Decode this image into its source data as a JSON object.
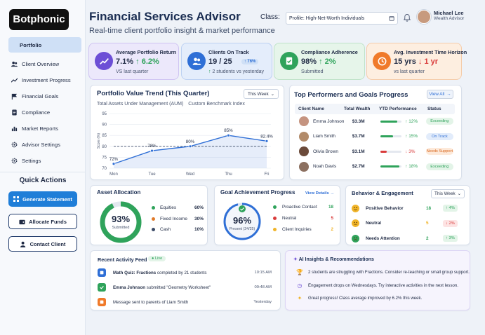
{
  "brand": "Botphonic",
  "sidebar": {
    "items": [
      {
        "label": "Portfolio",
        "icon": "portfolio-icon"
      },
      {
        "label": "Client Overview",
        "icon": "users-icon"
      },
      {
        "label": "Investment Progress",
        "icon": "trend-icon"
      },
      {
        "label": "Financial Goals",
        "icon": "flag-icon"
      },
      {
        "label": "Compliance",
        "icon": "document-icon"
      },
      {
        "label": "Market Reports",
        "icon": "chart-icon"
      },
      {
        "label": "Advisor Settings",
        "icon": "gear-icon"
      },
      {
        "label": "Settings",
        "icon": "gear-icon"
      }
    ],
    "quick_actions_title": "Quick Actions",
    "quick_actions": [
      "Generate Statement",
      "Allocate Funds",
      "Contact Client"
    ]
  },
  "header": {
    "title": "Financial Services Advisor",
    "subtitle": "Real-time client portfolio insight & market performance",
    "class_label": "Class:",
    "class_value": "Profile: High-Net-Worth Individuals",
    "user_name": "Michael Lee",
    "user_role": "Wealth Advisor"
  },
  "kpis": [
    {
      "label": "Average Portfolio Return",
      "value": "7.1%",
      "change": "6.2%",
      "sub": "VS last quarter",
      "icon": "trend-icon",
      "color": "#7a5ae0"
    },
    {
      "label": "Clients On Track",
      "value": "19 / 25",
      "badge": "76%",
      "sub": "2 students vs yesterday",
      "icon": "users-icon",
      "color": "#2f6fd6"
    },
    {
      "label": "Compliance Adherence",
      "value": "98%",
      "change": "2%",
      "sub": "Submitted",
      "icon": "document-check-icon",
      "color": "#2fa35b"
    },
    {
      "label": "Avg. Investment Time Horizon",
      "value": "15 yrs",
      "change": "1 yr",
      "sub": "vs last quarter",
      "icon": "clock-icon",
      "color": "#f07a2a"
    }
  ],
  "trend": {
    "title": "Portfolio Value Trend (This Quarter)",
    "period": "This Week",
    "legend": [
      "Total Assets Under Management (AUM)",
      "Custom Benchmark Index"
    ],
    "ylabel": "Score (%)"
  },
  "chart_data": {
    "type": "line",
    "categories": [
      "Mon",
      "Tue",
      "Wed",
      "Thu",
      "Fri"
    ],
    "series": [
      {
        "name": "Total Assets Under Management (AUM)",
        "values": [
          72,
          78,
          80,
          85,
          82.4
        ]
      },
      {
        "name": "Custom Benchmark Index",
        "values": [
          80,
          80,
          80,
          80,
          80
        ]
      }
    ],
    "data_labels": [
      "72%",
      "78%",
      "80%",
      "85%",
      "82.4%"
    ],
    "yticks": [
      70,
      75,
      80,
      85,
      90,
      95
    ],
    "ylim": [
      70,
      95
    ],
    "ylabel": "Score (%)",
    "grid": true,
    "legend": "top-left"
  },
  "performers": {
    "title": "Top Performers and Goals Progress",
    "view_all": "View All",
    "columns": [
      "Client Name",
      "Total Wealth",
      "YTD Performance",
      "Status"
    ],
    "rows": [
      {
        "name": "Emma Johnson",
        "wealth": "$3.3M",
        "progress": 0.8,
        "ytd": "12%",
        "dir": "up",
        "status": "Exceeding"
      },
      {
        "name": "Liam Smith",
        "wealth": "$3.7M",
        "progress": 0.6,
        "ytd": "15%",
        "dir": "up",
        "status": "On Track"
      },
      {
        "name": "Olivia Brown",
        "wealth": "$3.1M",
        "progress": 0.3,
        "ytd": "3%",
        "dir": "down",
        "status": "Needs Support"
      },
      {
        "name": "Noah Davis",
        "wealth": "$2.7M",
        "progress": 0.9,
        "ytd": "18%",
        "dir": "up",
        "status": "Exceeding"
      }
    ]
  },
  "allocation": {
    "title": "Asset Allocation",
    "center_value": "93%",
    "center_label": "Submitted",
    "items": [
      {
        "label": "Equities",
        "value": "60%",
        "color": "#2fa35b"
      },
      {
        "label": "Fixed Income",
        "value": "30%",
        "color": "#e07a2a"
      },
      {
        "label": "Cash",
        "value": "10%",
        "color": "#3b4a66"
      }
    ]
  },
  "goals": {
    "title": "Goal Achievement Progress",
    "view_details": "View Details",
    "center_value": "96%",
    "center_label": "Present (24/25)",
    "items": [
      {
        "label": "Proactive Contact",
        "value": "18",
        "color": "#2fa35b"
      },
      {
        "label": "Neutral",
        "value": "5",
        "color": "#d93b3b"
      },
      {
        "label": "Client Inquiries",
        "value": "2",
        "color": "#f0b429"
      }
    ]
  },
  "behavior": {
    "title": "Behavior & Engagement",
    "period": "This Week",
    "items": [
      {
        "label": "Positive Behavior",
        "value": "18",
        "change": "4%",
        "dir": "up",
        "icon": "smile-icon"
      },
      {
        "label": "Neutral",
        "value": "5",
        "change": "2%",
        "dir": "down",
        "icon": "neutral-face-icon"
      },
      {
        "label": "Needs Attention",
        "value": "2",
        "change": "3%",
        "dir": "up",
        "icon": "sad-face-icon"
      }
    ]
  },
  "feed": {
    "title": "Recent Activity Feed",
    "live": "Live",
    "items": [
      {
        "bold": "Math Quiz: Fractions",
        "text": " completed by 21 students",
        "time": "10:15 AM",
        "icon": "quiz-icon"
      },
      {
        "bold": "Emma Johnson",
        "text": " submitted \"Geometry Worksheet\"",
        "time": "09:48 AM",
        "icon": "check-icon"
      },
      {
        "bold": "",
        "text": "Message sent to parents of Liam Smith",
        "time": "Yesterday",
        "icon": "message-icon"
      }
    ]
  },
  "ai": {
    "title": "AI Insights & Recommendations",
    "items": [
      {
        "text": "2 students are struggling with Fractions. Consider re-teaching or small group support.",
        "icon": "trophy-icon"
      },
      {
        "text": "Engagement drops on Wednesdays. Try interactive activities in the next lesson.",
        "icon": "clock-icon"
      },
      {
        "text": "Great progress! Class average improved by 6.2% this week.",
        "icon": "sparkle-icon"
      }
    ]
  }
}
